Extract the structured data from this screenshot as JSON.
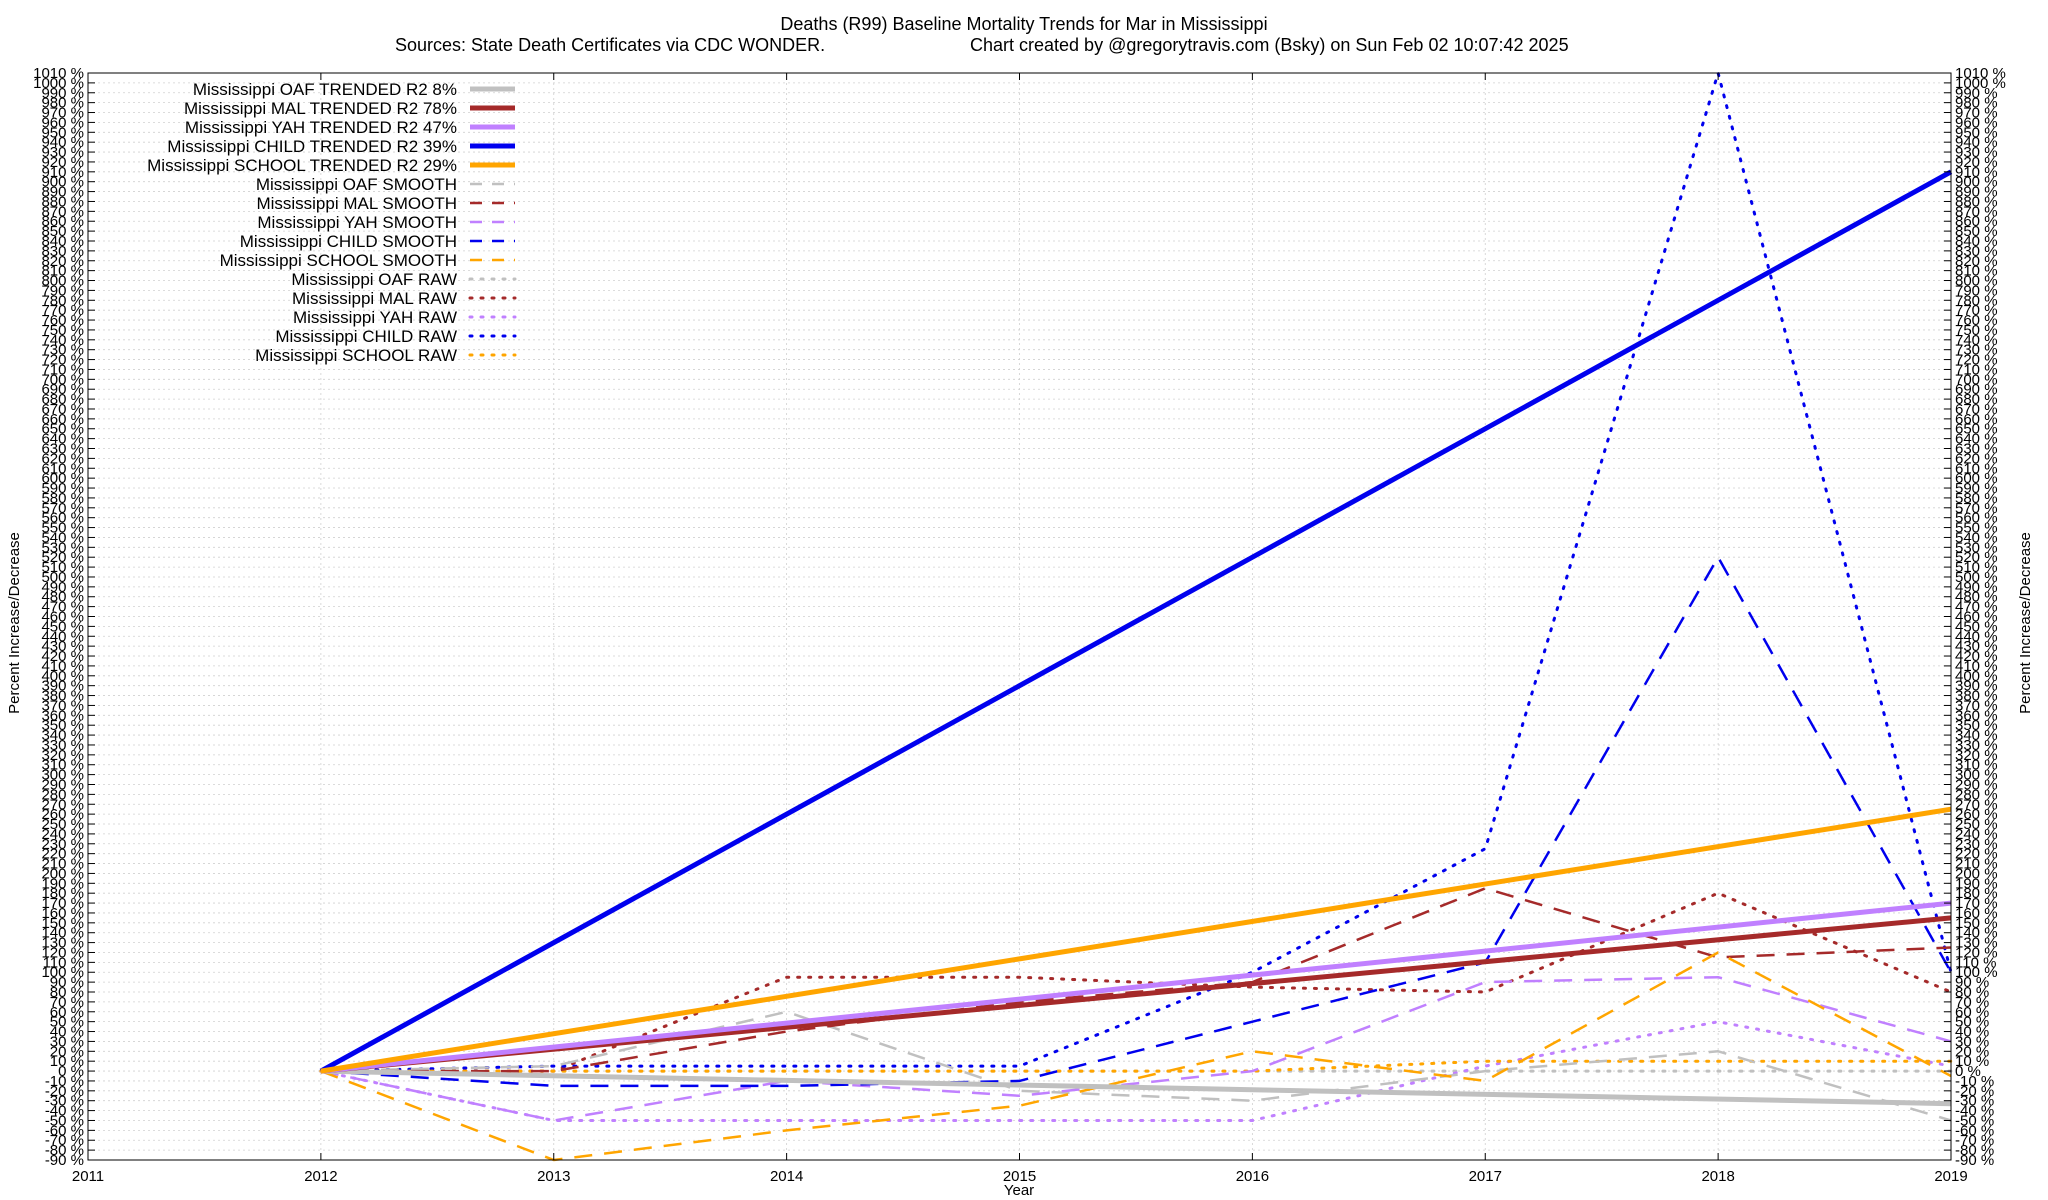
{
  "chart_data": {
    "type": "line",
    "title": "Deaths (R99)  Baseline Mortality Trends for Mar in Mississippi",
    "subtitle_left": "Sources: State Death Certificates via CDC WONDER.",
    "subtitle_right": "Chart created by @gregorytravis.com (Bsky) on Sun Feb 02 10:07:42 2025",
    "xlabel": "Year",
    "ylabel": "Percent Increase/Decrease",
    "xlim": [
      2011,
      2019
    ],
    "ylim": [
      -90,
      1010
    ],
    "x_ticks": [
      "2011",
      "2012",
      "2013",
      "2014",
      "2015",
      "2016",
      "2017",
      "2018",
      "2019"
    ],
    "y_tick_step": 10,
    "y_tick_suffix": " %",
    "grid": true,
    "legend_position": "top-left",
    "x": [
      2012,
      2013,
      2014,
      2015,
      2016,
      2017,
      2018,
      2019
    ],
    "series": [
      {
        "name": "Mississippi OAF TRENDED R2  8%",
        "color": "#c0c0c0",
        "style": "trend",
        "values": [
          0,
          null,
          null,
          null,
          null,
          null,
          null,
          -33
        ]
      },
      {
        "name": "Mississippi MAL TRENDED R2  78%",
        "color": "#a52a2a",
        "style": "trend",
        "values": [
          0,
          null,
          null,
          null,
          null,
          null,
          null,
          155
        ]
      },
      {
        "name": "Mississippi YAH TRENDED R2  47%",
        "color": "#c080ff",
        "style": "trend",
        "values": [
          0,
          null,
          null,
          null,
          null,
          null,
          null,
          170
        ]
      },
      {
        "name": "Mississippi CHILD TRENDED R2  39%",
        "color": "#0000ee",
        "style": "trend",
        "values": [
          0,
          null,
          null,
          null,
          null,
          null,
          null,
          910
        ]
      },
      {
        "name": "Mississippi SCHOOL TRENDED R2  29%",
        "color": "#ffa500",
        "style": "trend",
        "values": [
          0,
          null,
          null,
          null,
          null,
          null,
          null,
          265
        ]
      },
      {
        "name": "Mississippi OAF SMOOTH",
        "color": "#c0c0c0",
        "style": "smooth",
        "values": [
          0,
          5,
          60,
          -20,
          -30,
          0,
          20,
          -50
        ]
      },
      {
        "name": "Mississippi MAL SMOOTH",
        "color": "#a52a2a",
        "style": "smooth",
        "values": [
          0,
          0,
          40,
          70,
          90,
          185,
          115,
          125
        ]
      },
      {
        "name": "Mississippi YAH SMOOTH",
        "color": "#c080ff",
        "style": "smooth",
        "values": [
          0,
          -50,
          -10,
          -25,
          0,
          90,
          95,
          30
        ]
      },
      {
        "name": "Mississippi CHILD SMOOTH",
        "color": "#0000ee",
        "style": "smooth",
        "values": [
          0,
          -15,
          -15,
          -10,
          50,
          110,
          520,
          100
        ]
      },
      {
        "name": "Mississippi SCHOOL SMOOTH",
        "color": "#ffa500",
        "style": "smooth",
        "values": [
          0,
          -90,
          -60,
          -35,
          20,
          -10,
          120,
          -5
        ]
      },
      {
        "name": "Mississippi OAF RAW",
        "color": "#c0c0c0",
        "style": "raw",
        "values": [
          0,
          0,
          0,
          0,
          0,
          0,
          0,
          0
        ]
      },
      {
        "name": "Mississippi MAL RAW",
        "color": "#a52a2a",
        "style": "raw",
        "values": [
          0,
          0,
          95,
          95,
          85,
          80,
          180,
          80
        ]
      },
      {
        "name": "Mississippi YAH RAW",
        "color": "#c080ff",
        "style": "raw",
        "values": [
          0,
          -50,
          -50,
          -50,
          -50,
          5,
          50,
          5
        ]
      },
      {
        "name": "Mississippi CHILD RAW",
        "color": "#0000ee",
        "style": "raw",
        "values": [
          0,
          5,
          5,
          5,
          100,
          225,
          1010,
          100
        ]
      },
      {
        "name": "Mississippi SCHOOL RAW",
        "color": "#ffa500",
        "style": "raw",
        "values": [
          0,
          0,
          0,
          0,
          0,
          10,
          10,
          10
        ]
      }
    ]
  }
}
